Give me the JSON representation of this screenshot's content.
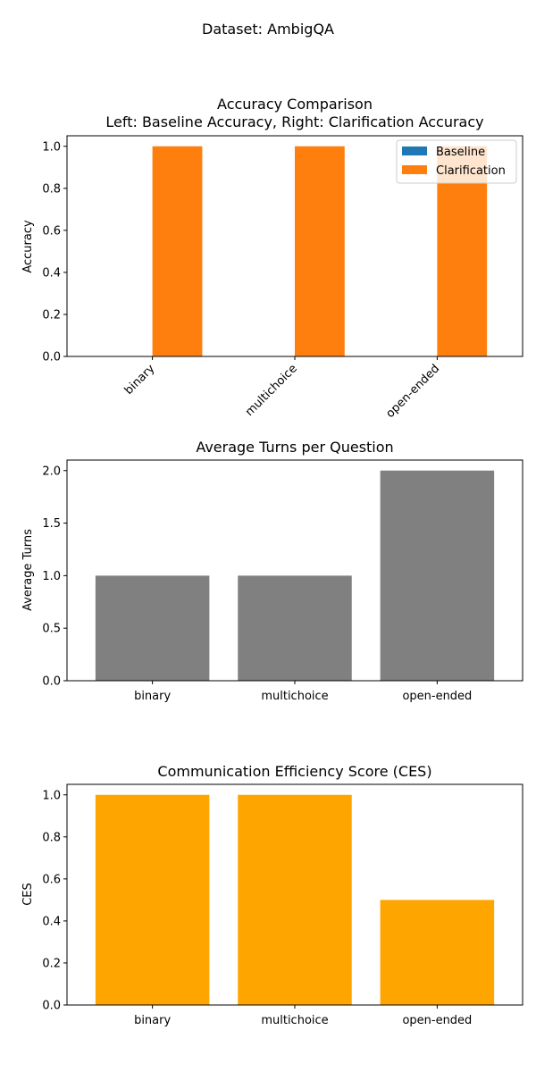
{
  "figure": {
    "suptitle": "Dataset: AmbigQA"
  },
  "chart_data": [
    {
      "type": "bar",
      "title_line1": "Accuracy Comparison",
      "title_line2": "Left: Baseline Accuracy, Right: Clarification Accuracy",
      "xlabel": "",
      "ylabel": "Accuracy",
      "categories": [
        "binary",
        "multichoice",
        "open-ended"
      ],
      "series": [
        {
          "name": "Baseline",
          "values": [
            0.0,
            0.0,
            0.0
          ],
          "color": "#1f77b4"
        },
        {
          "name": "Clarification",
          "values": [
            1.0,
            1.0,
            1.0
          ],
          "color": "#ff7f0e"
        }
      ],
      "ylim": [
        0,
        1.05
      ],
      "yticks": [
        "0.0",
        "0.2",
        "0.4",
        "0.6",
        "0.8",
        "1.0"
      ],
      "xtick_rotation": 45,
      "legend": "top-right",
      "grid": false
    },
    {
      "type": "bar",
      "title": "Average Turns per Question",
      "xlabel": "",
      "ylabel": "Average Turns",
      "categories": [
        "binary",
        "multichoice",
        "open-ended"
      ],
      "values": [
        1.0,
        1.0,
        2.0
      ],
      "color": "#808080",
      "ylim": [
        0,
        2.1
      ],
      "yticks": [
        "0.0",
        "0.5",
        "1.0",
        "1.5",
        "2.0"
      ],
      "grid": false
    },
    {
      "type": "bar",
      "title": "Communication Efficiency Score (CES)",
      "xlabel": "",
      "ylabel": "CES",
      "categories": [
        "binary",
        "multichoice",
        "open-ended"
      ],
      "values": [
        1.0,
        1.0,
        0.5
      ],
      "color": "#ffa500",
      "ylim": [
        0,
        1.05
      ],
      "yticks": [
        "0.0",
        "0.2",
        "0.4",
        "0.6",
        "0.8",
        "1.0"
      ],
      "grid": false
    }
  ]
}
